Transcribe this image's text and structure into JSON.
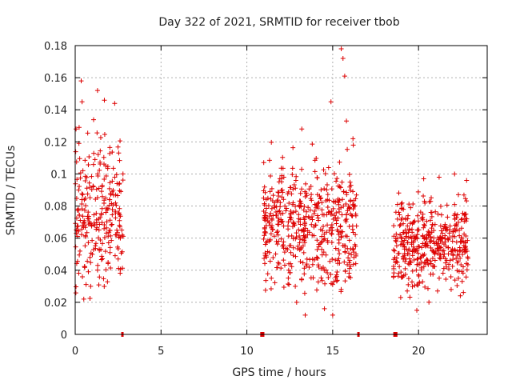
{
  "chart_data": {
    "type": "scatter",
    "title": "Day 322 of 2021, SRMTID for receiver tbob",
    "xlabel": "GPS time / hours",
    "ylabel": "SRMTID / TECUs",
    "xlim": [
      0,
      24
    ],
    "ylim": [
      0,
      0.18
    ],
    "grid": true,
    "xticks": [
      0,
      5,
      10,
      15,
      20
    ],
    "xtick_labels": [
      "0",
      "5",
      "10",
      "15",
      "20"
    ],
    "yticks": [
      0,
      0.02,
      0.04,
      0.06,
      0.08,
      0.1,
      0.12,
      0.14,
      0.16,
      0.18
    ],
    "ytick_labels": [
      "0",
      "0.02",
      "0.04",
      "0.06",
      "0.08",
      "0.1",
      "0.12",
      "0.14",
      "0.16",
      "0.18"
    ],
    "marker": "+",
    "color": "#dd0000",
    "series": [
      {
        "name": "SRMTID",
        "clusters": [
          {
            "x_range": [
              0.0,
              2.8
            ],
            "y_center": 0.075,
            "y_spread": 0.025,
            "count": 260,
            "y_min": 0.022,
            "y_max": 0.158
          },
          {
            "x_range": [
              10.9,
              16.4
            ],
            "y_center": 0.068,
            "y_spread": 0.022,
            "count": 520,
            "y_min": 0.012,
            "y_max": 0.178
          },
          {
            "x_range": [
              18.5,
              22.9
            ],
            "y_center": 0.058,
            "y_spread": 0.016,
            "count": 420,
            "y_min": 0.015,
            "y_max": 0.1
          }
        ],
        "points": [
          [
            0.05,
            0.128
          ],
          [
            0.2,
            0.09
          ],
          [
            0.35,
            0.158
          ],
          [
            0.4,
            0.145
          ],
          [
            0.5,
            0.022
          ],
          [
            0.9,
            0.03
          ],
          [
            1.3,
            0.152
          ],
          [
            1.7,
            0.146
          ],
          [
            2.3,
            0.144
          ],
          [
            2.5,
            0.047
          ],
          [
            13.4,
            0.012
          ],
          [
            13.2,
            0.128
          ],
          [
            14.9,
            0.145
          ],
          [
            15.0,
            0.012
          ],
          [
            15.5,
            0.178
          ],
          [
            15.6,
            0.172
          ],
          [
            15.7,
            0.161
          ],
          [
            15.8,
            0.133
          ],
          [
            16.2,
            0.118
          ],
          [
            12.9,
            0.02
          ],
          [
            19.9,
            0.015
          ],
          [
            20.3,
            0.097
          ],
          [
            21.2,
            0.098
          ],
          [
            22.1,
            0.1
          ],
          [
            22.8,
            0.096
          ],
          [
            19.4,
            0.031
          ],
          [
            21.9,
            0.028
          ]
        ],
        "zero_markers": [
          2.75,
          10.85,
          10.95,
          16.5,
          18.6,
          18.7
        ]
      }
    ]
  }
}
